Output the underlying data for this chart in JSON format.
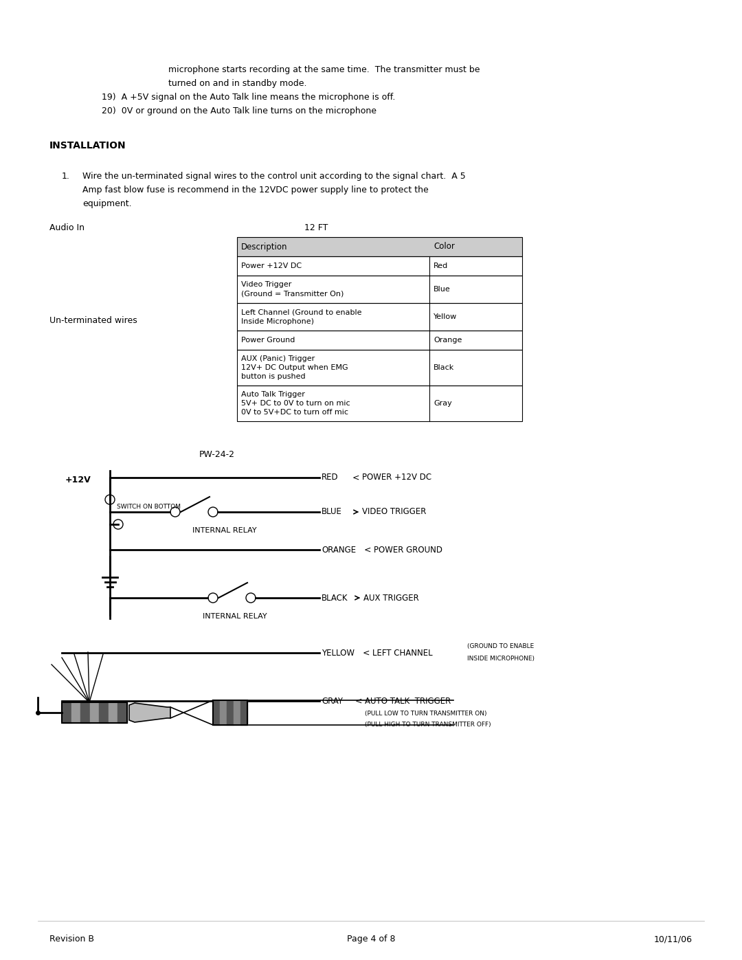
{
  "bg_color": "#ffffff",
  "page_width": 10.8,
  "page_height": 13.97,
  "top_text_line1": "microphone starts recording at the same time.  The transmitter must be",
  "top_text_line2": "turned on and in standby mode.",
  "top_text_line3": "19)  A +5V signal on the Auto Talk line means the microphone is off.",
  "top_text_line4": "20)  0V or ground on the Auto Talk line turns on the microphone",
  "section_title": "INSTALLATION",
  "item1_line1": "Wire the un-terminated signal wires to the control unit according to the signal chart.  A 5",
  "item1_line2": "Amp fast blow fuse is recommend in the 12VDC power supply line to protect the",
  "item1_line3": "equipment.",
  "cable_label_left": "Audio In",
  "cable_label_top": "12 FT",
  "wire_label": "Un-terminated wires",
  "tbl_header_desc": "Description",
  "tbl_header_color": "Color",
  "tbl_rows": [
    {
      "desc": "Power +12V DC",
      "color": "Red",
      "lines": 1
    },
    {
      "desc": "Video Trigger\n(Ground = Transmitter On)",
      "color": "Blue",
      "lines": 2
    },
    {
      "desc": "Left Channel (Ground to enable\nInside Microphone)",
      "color": "Yellow",
      "lines": 2
    },
    {
      "desc": "Power Ground",
      "color": "Orange",
      "lines": 1
    },
    {
      "desc": "AUX (Panic) Trigger\n12V+ DC Output when EMG\nbutton is pushed",
      "color": "Black",
      "lines": 3
    },
    {
      "desc": "Auto Talk Trigger\n5V+ DC to 0V to turn on mic\n0V to 5V+DC to turn off mic",
      "color": "Gray",
      "lines": 3
    }
  ],
  "diagram_title": "PW-24-2",
  "footer_left": "Revision B",
  "footer_center": "Page 4 of 8",
  "footer_right": "10/11/06",
  "font_main": 9,
  "font_small": 7,
  "font_tiny": 6.5,
  "font_bold_title": 10,
  "line_color": "#000000",
  "gray_fill": "#cccccc",
  "dark_fill": "#555555"
}
